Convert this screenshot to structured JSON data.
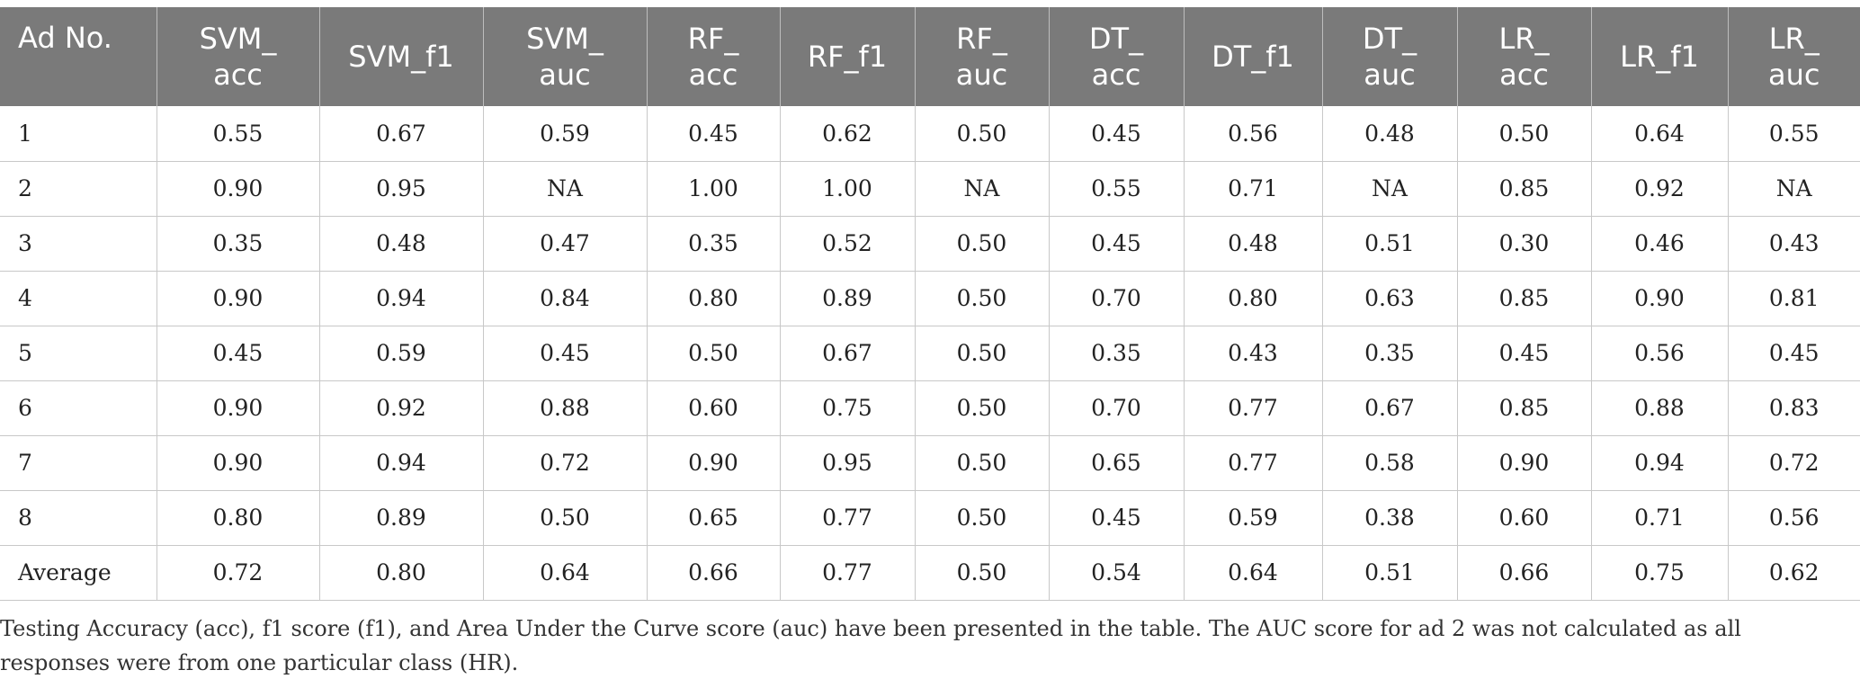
{
  "table": {
    "headers": [
      "Ad No.",
      "SVM_\nacc",
      "SVM_f1",
      "SVM_\nauc",
      "RF_\nacc",
      "RF_f1",
      "RF_\nauc",
      "DT_\nacc",
      "DT_f1",
      "DT_\nauc",
      "LR_\nacc",
      "LR_f1",
      "LR_\nauc"
    ],
    "rows": [
      [
        "1",
        "0.55",
        "0.67",
        "0.59",
        "0.45",
        "0.62",
        "0.50",
        "0.45",
        "0.56",
        "0.48",
        "0.50",
        "0.64",
        "0.55"
      ],
      [
        "2",
        "0.90",
        "0.95",
        "NA",
        "1.00",
        "1.00",
        "NA",
        "0.55",
        "0.71",
        "NA",
        "0.85",
        "0.92",
        "NA"
      ],
      [
        "3",
        "0.35",
        "0.48",
        "0.47",
        "0.35",
        "0.52",
        "0.50",
        "0.45",
        "0.48",
        "0.51",
        "0.30",
        "0.46",
        "0.43"
      ],
      [
        "4",
        "0.90",
        "0.94",
        "0.84",
        "0.80",
        "0.89",
        "0.50",
        "0.70",
        "0.80",
        "0.63",
        "0.85",
        "0.90",
        "0.81"
      ],
      [
        "5",
        "0.45",
        "0.59",
        "0.45",
        "0.50",
        "0.67",
        "0.50",
        "0.35",
        "0.43",
        "0.35",
        "0.45",
        "0.56",
        "0.45"
      ],
      [
        "6",
        "0.90",
        "0.92",
        "0.88",
        "0.60",
        "0.75",
        "0.50",
        "0.70",
        "0.77",
        "0.67",
        "0.85",
        "0.88",
        "0.83"
      ],
      [
        "7",
        "0.90",
        "0.94",
        "0.72",
        "0.90",
        "0.95",
        "0.50",
        "0.65",
        "0.77",
        "0.58",
        "0.90",
        "0.94",
        "0.72"
      ],
      [
        "8",
        "0.80",
        "0.89",
        "0.50",
        "0.65",
        "0.77",
        "0.50",
        "0.45",
        "0.59",
        "0.38",
        "0.60",
        "0.71",
        "0.56"
      ],
      [
        "Average",
        "0.72",
        "0.80",
        "0.64",
        "0.66",
        "0.77",
        "0.50",
        "0.54",
        "0.64",
        "0.51",
        "0.66",
        "0.75",
        "0.62"
      ]
    ]
  },
  "footnote": "Testing Accuracy (acc), f1 score (f1), and Area Under the Curve score (auc) have been presented in the table. The AUC score for ad 2 was not calculated as all responses were from one particular class (HR).",
  "colors": {
    "header_background": "#7a7a7a",
    "header_text": "#ffffff",
    "grid_lines": "#c8c8c8"
  }
}
